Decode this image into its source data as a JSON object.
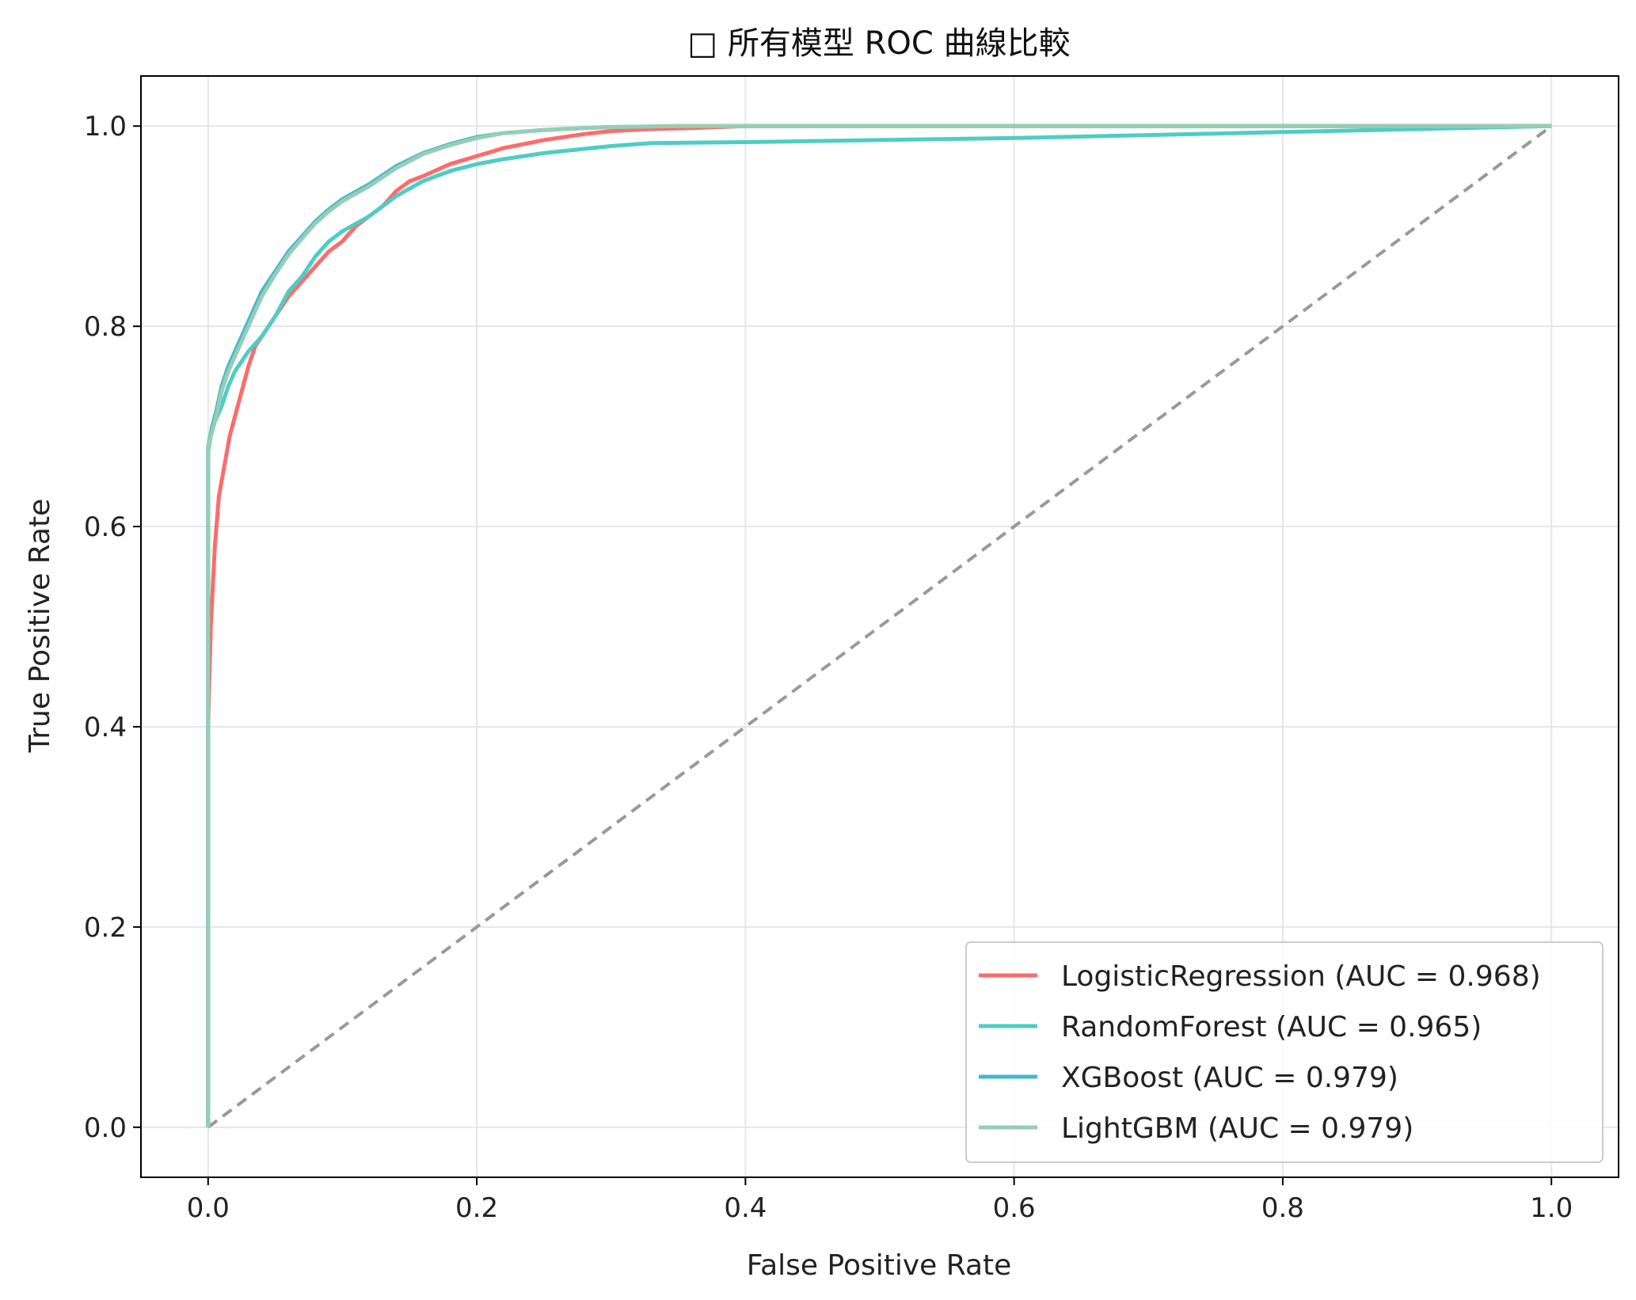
{
  "chart_data": {
    "type": "line",
    "title": "□ 所有模型 ROC 曲線比較",
    "xlabel": "False Positive Rate",
    "ylabel": "True Positive Rate",
    "xlim": [
      -0.05,
      1.05
    ],
    "ylim": [
      -0.05,
      1.05
    ],
    "x_ticks": [
      "0.0",
      "0.2",
      "0.4",
      "0.6",
      "0.8",
      "1.0"
    ],
    "y_ticks": [
      "0.0",
      "0.2",
      "0.4",
      "0.6",
      "0.8",
      "1.0"
    ],
    "grid": true,
    "legend_position": "lower-right",
    "series": [
      {
        "name": "LogisticRegression (AUC = 0.968)",
        "color": "#ff6b6b",
        "x": [
          0,
          0,
          0.002,
          0.005,
          0.008,
          0.012,
          0.016,
          0.02,
          0.025,
          0.03,
          0.035,
          0.04,
          0.05,
          0.06,
          0.07,
          0.08,
          0.09,
          0.1,
          0.11,
          0.12,
          0.13,
          0.14,
          0.15,
          0.16,
          0.18,
          0.2,
          0.22,
          0.25,
          0.28,
          0.3,
          0.33,
          0.36,
          0.4,
          0.5,
          0.7,
          1.0
        ],
        "y": [
          0,
          0.4,
          0.5,
          0.58,
          0.63,
          0.66,
          0.69,
          0.71,
          0.735,
          0.76,
          0.78,
          0.79,
          0.81,
          0.83,
          0.845,
          0.86,
          0.875,
          0.885,
          0.9,
          0.91,
          0.92,
          0.935,
          0.945,
          0.95,
          0.962,
          0.97,
          0.978,
          0.986,
          0.992,
          0.995,
          0.997,
          0.998,
          1.0,
          1.0,
          1.0,
          1.0
        ]
      },
      {
        "name": "RandomForest (AUC = 0.965)",
        "color": "#4ecdc4",
        "x": [
          0,
          0,
          0.002,
          0.005,
          0.01,
          0.015,
          0.02,
          0.025,
          0.03,
          0.04,
          0.05,
          0.06,
          0.07,
          0.08,
          0.09,
          0.1,
          0.12,
          0.14,
          0.16,
          0.18,
          0.2,
          0.22,
          0.25,
          0.3,
          0.33,
          0.4,
          0.5,
          0.6,
          0.7,
          0.8,
          0.9,
          1.0
        ],
        "y": [
          0,
          0.675,
          0.69,
          0.705,
          0.72,
          0.74,
          0.755,
          0.765,
          0.775,
          0.79,
          0.81,
          0.835,
          0.85,
          0.87,
          0.885,
          0.895,
          0.91,
          0.93,
          0.945,
          0.955,
          0.962,
          0.967,
          0.973,
          0.98,
          0.983,
          0.984,
          0.986,
          0.988,
          0.991,
          0.994,
          0.997,
          1.0
        ]
      },
      {
        "name": "XGBoost (AUC = 0.979)",
        "color": "#45b7d1",
        "x": [
          0,
          0,
          0.003,
          0.006,
          0.01,
          0.015,
          0.02,
          0.03,
          0.04,
          0.05,
          0.06,
          0.07,
          0.08,
          0.09,
          0.1,
          0.12,
          0.14,
          0.16,
          0.18,
          0.2,
          0.22,
          0.25,
          0.28,
          0.3,
          0.35,
          0.4,
          0.5,
          0.6,
          0.8,
          1.0
        ],
        "y": [
          0,
          0.68,
          0.7,
          0.715,
          0.74,
          0.76,
          0.775,
          0.805,
          0.835,
          0.855,
          0.875,
          0.89,
          0.905,
          0.917,
          0.927,
          0.942,
          0.96,
          0.973,
          0.982,
          0.989,
          0.993,
          0.996,
          0.998,
          0.999,
          1.0,
          1.0,
          1.0,
          1.0,
          1.0,
          1.0
        ]
      },
      {
        "name": "LightGBM (AUC = 0.979)",
        "color": "#96ceb4",
        "x": [
          0,
          0,
          0.003,
          0.006,
          0.01,
          0.015,
          0.02,
          0.03,
          0.04,
          0.05,
          0.06,
          0.07,
          0.08,
          0.09,
          0.1,
          0.12,
          0.14,
          0.16,
          0.18,
          0.2,
          0.22,
          0.25,
          0.28,
          0.3,
          0.35,
          0.4,
          0.5,
          0.6,
          0.8,
          1.0
        ],
        "y": [
          0,
          0.68,
          0.695,
          0.71,
          0.735,
          0.755,
          0.77,
          0.8,
          0.83,
          0.852,
          0.872,
          0.888,
          0.903,
          0.915,
          0.925,
          0.94,
          0.958,
          0.972,
          0.981,
          0.988,
          0.993,
          0.996,
          0.998,
          0.999,
          1.0,
          1.0,
          1.0,
          1.0,
          1.0,
          1.0
        ]
      }
    ],
    "reference_line": {
      "x": [
        0,
        1
      ],
      "y": [
        0,
        1
      ],
      "color": "#999999",
      "style": "dashed"
    }
  }
}
